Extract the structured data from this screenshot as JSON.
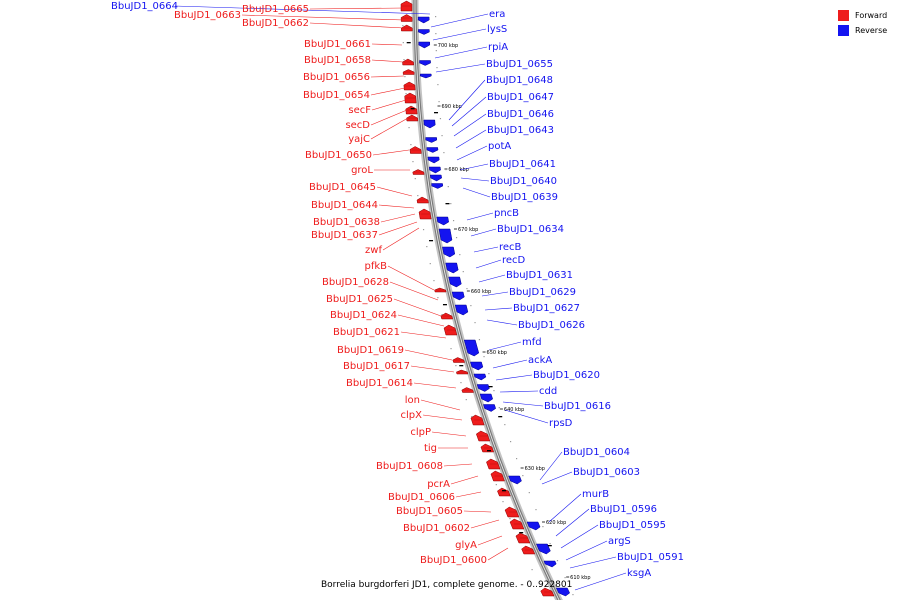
{
  "legend": {
    "forward_label": "Forward",
    "reverse_label": "Reverse",
    "forward_color": "#ee1c1c",
    "reverse_color": "#1414f0"
  },
  "caption": "Borrelia burgdorferi JD1, complete genome. - 0..922801",
  "ticks": [
    "700 kbp",
    "690 kbp",
    "680 kbp",
    "670 kbp",
    "660 kbp",
    "650 kbp",
    "640 kbp",
    "630 kbp",
    "620 kbp",
    "610 kbp"
  ],
  "reverse_labels": [
    "BbuJD1_0664",
    "era",
    "lysS",
    "rpiA",
    "BbuJD1_0655",
    "BbuJD1_0648",
    "BbuJD1_0647",
    "BbuJD1_0646",
    "BbuJD1_0643",
    "potA",
    "BbuJD1_0641",
    "BbuJD1_0640",
    "BbuJD1_0639",
    "pncB",
    "BbuJD1_0634",
    "recB",
    "recD",
    "BbuJD1_0631",
    "BbuJD1_0629",
    "BbuJD1_0627",
    "BbuJD1_0626",
    "mfd",
    "ackA",
    "BbuJD1_0620",
    "cdd",
    "BbuJD1_0616",
    "rpsD",
    "BbuJD1_0604",
    "BbuJD1_0603",
    "murB",
    "BbuJD1_0596",
    "BbuJD1_0595",
    "argS",
    "BbuJD1_0591",
    "ksgA"
  ],
  "forward_labels": [
    "BbuJD1_0665",
    "BbuJD1_0663",
    "BbuJD1_0662",
    "BbuJD1_0661",
    "BbuJD1_0658",
    "BbuJD1_0656",
    "BbuJD1_0654",
    "secF",
    "secD",
    "yajC",
    "BbuJD1_0650",
    "groL",
    "BbuJD1_0645",
    "BbuJD1_0644",
    "BbuJD1_0638",
    "BbuJD1_0637",
    "zwf",
    "pfkB",
    "BbuJD1_0628",
    "BbuJD1_0625",
    "BbuJD1_0624",
    "BbuJD1_0621",
    "BbuJD1_0619",
    "BbuJD1_0617",
    "BbuJD1_0614",
    "lon",
    "clpX",
    "clpP",
    "tig",
    "BbuJD1_0608",
    "pcrA",
    "BbuJD1_0606",
    "BbuJD1_0605",
    "BbuJD1_0602",
    "glyA",
    "BbuJD1_0600"
  ]
}
